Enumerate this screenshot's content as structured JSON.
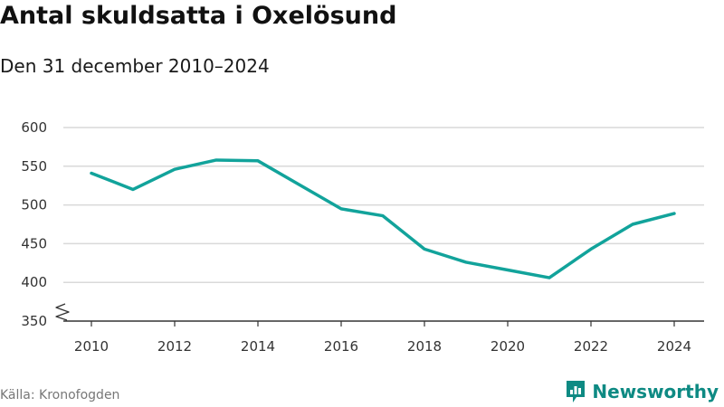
{
  "title": "Antal skuldsatta i Oxelösund",
  "subtitle": "Den 31 december 2010–2024",
  "source": "Källa: Kronofogden",
  "brand": "Newsworthy",
  "colors": {
    "line": "#12a39b",
    "grid": "#d9d9d9",
    "axis": "#333333",
    "brand": "#0e8a83"
  },
  "chart_data": {
    "type": "line",
    "title": "Antal skuldsatta i Oxelösund",
    "subtitle": "Den 31 december 2010–2024",
    "x": [
      2010,
      2011,
      2012,
      2013,
      2014,
      2015,
      2016,
      2017,
      2018,
      2019,
      2020,
      2021,
      2022,
      2023,
      2024
    ],
    "series": [
      {
        "values": [
          541,
          520,
          546,
          558,
          557,
          526,
          495,
          486,
          443,
          426,
          416,
          406,
          443,
          475,
          489
        ]
      }
    ],
    "xlim": [
      2010,
      2024
    ],
    "ylim": [
      350,
      600
    ],
    "yticks": [
      350,
      400,
      450,
      500,
      550,
      600
    ],
    "xticks": [
      2010,
      2012,
      2014,
      2016,
      2018,
      2020,
      2022,
      2024
    ],
    "axis_break": true,
    "grid": true,
    "legend": "none"
  }
}
